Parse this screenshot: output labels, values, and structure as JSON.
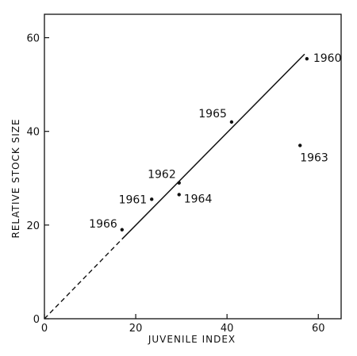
{
  "chart_data": {
    "type": "scatter",
    "title": "",
    "xlabel": "JUVENILE INDEX",
    "ylabel": "RELATIVE STOCK SIZE",
    "xlim": [
      0,
      65
    ],
    "ylim": [
      0,
      65
    ],
    "x_ticks": [
      0,
      20,
      40,
      60
    ],
    "y_ticks": [
      0,
      20,
      40,
      60
    ],
    "x_tick_labels": [
      "0",
      "20",
      "40",
      "60"
    ],
    "y_tick_labels": [
      "0",
      "20",
      "40",
      "60"
    ],
    "grid": false,
    "points": [
      {
        "label": "1960",
        "x": 57.5,
        "y": 55.5
      },
      {
        "label": "1961",
        "x": 23.5,
        "y": 25.5
      },
      {
        "label": "1962",
        "x": 29.5,
        "y": 29.0
      },
      {
        "label": "1963",
        "x": 56.0,
        "y": 37.0
      },
      {
        "label": "1964",
        "x": 29.5,
        "y": 26.5
      },
      {
        "label": "1965",
        "x": 41.0,
        "y": 42.0
      },
      {
        "label": "1966",
        "x": 17.0,
        "y": 19.0
      }
    ],
    "fit_line": {
      "dashed_segment": [
        [
          0,
          0
        ],
        [
          17,
          17
        ]
      ],
      "solid_segment": [
        [
          17,
          17
        ],
        [
          57,
          56.5
        ]
      ]
    },
    "colors": {
      "ink": "#111111",
      "background": "#ffffff"
    }
  }
}
